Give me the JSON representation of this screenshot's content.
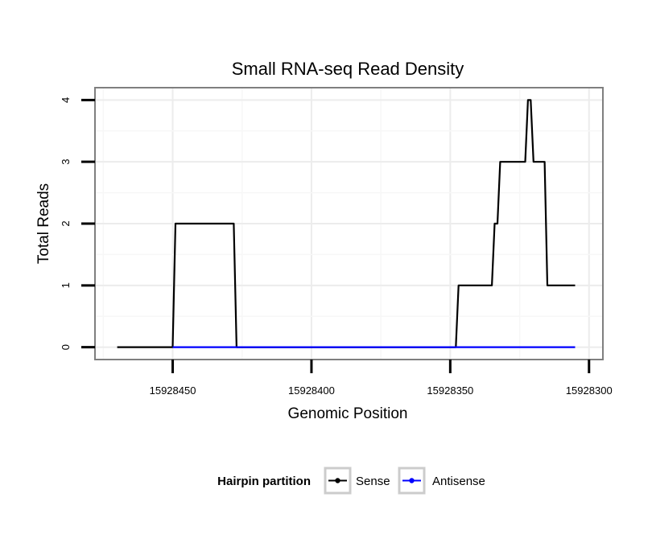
{
  "chart_data": {
    "type": "line",
    "title": "Small RNA-seq Read Density",
    "xlabel": "Genomic Position",
    "ylabel": "Total Reads",
    "x_reversed": true,
    "xlim": [
      15928478,
      15928295
    ],
    "ylim": [
      -0.2,
      4.2
    ],
    "x_ticks": [
      15928450,
      15928400,
      15928350,
      15928300
    ],
    "x_tick_labels": [
      "15928450",
      "15928400",
      "15928350",
      "15928300"
    ],
    "y_ticks": [
      0,
      1,
      2,
      3,
      4
    ],
    "y_tick_labels": [
      "0",
      "1",
      "2",
      "3",
      "4"
    ],
    "grid": true,
    "legend_title": "Hairpin partition",
    "legend_position": "bottom",
    "series": [
      {
        "name": "Sense",
        "color": "#000000",
        "x": [
          15928470,
          15928450,
          15928449,
          15928428,
          15928427,
          15928348,
          15928347,
          15928335,
          15928334,
          15928333,
          15928332,
          15928323,
          15928322,
          15928321,
          15928320,
          15928318,
          15928316,
          15928315,
          15928314,
          15928305
        ],
        "y": [
          0,
          0,
          2,
          2,
          0,
          0,
          1,
          1,
          2,
          2,
          3,
          3,
          4,
          4,
          3,
          3,
          3,
          1,
          1,
          1
        ]
      },
      {
        "name": "Antisense",
        "color": "#0000ff",
        "x": [
          15928450,
          15928305
        ],
        "y": [
          0,
          0
        ]
      }
    ]
  }
}
